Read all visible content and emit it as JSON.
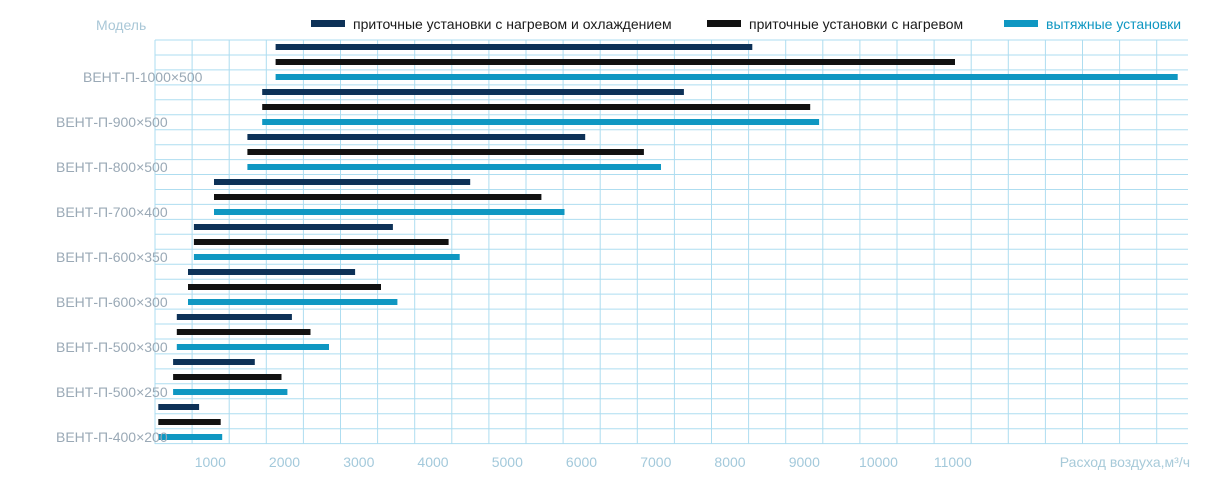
{
  "chart_data": {
    "type": "bar",
    "orientation": "horizontal",
    "corner_label": "Модель",
    "xlabel": "Расход воздуха,м³/ч",
    "x_ticks": [
      "1000",
      "2000",
      "3000",
      "4000",
      "5000",
      "6000",
      "7000",
      "8000",
      "9000",
      "10000",
      "11000"
    ],
    "categories": [
      "ВЕНТ-П-400×200",
      "ВЕНТ-П-500×250",
      "ВЕНТ-П-500×300",
      "ВЕНТ-П-600×300",
      "ВЕНТ-П-600×350",
      "ВЕНТ-П-700×400",
      "ВЕНТ-П-800×500",
      "ВЕНТ-П-900×500",
      "ВЕНТ-П-1000×500"
    ],
    "range_start": [
      300,
      500,
      550,
      700,
      780,
      1050,
      1500,
      1700,
      1880
    ],
    "series": [
      {
        "name": "приточные установки с нагревом и охлаждением",
        "color": "#0d3157",
        "values": [
          850,
          1600,
          2100,
          2950,
          3460,
          4500,
          6050,
          7380,
          8300
        ]
      },
      {
        "name": "приточные установки с нагревом",
        "color": "#111111",
        "values": [
          1140,
          1960,
          2350,
          3300,
          4210,
          5460,
          6840,
          9080,
          11030
        ]
      },
      {
        "name": "вытяжные установки",
        "color": "#0f97c2",
        "values": [
          1160,
          2040,
          2600,
          3520,
          4360,
          5770,
          7070,
          9200,
          14030
        ]
      }
    ],
    "legend_position": "top",
    "grid": true
  }
}
